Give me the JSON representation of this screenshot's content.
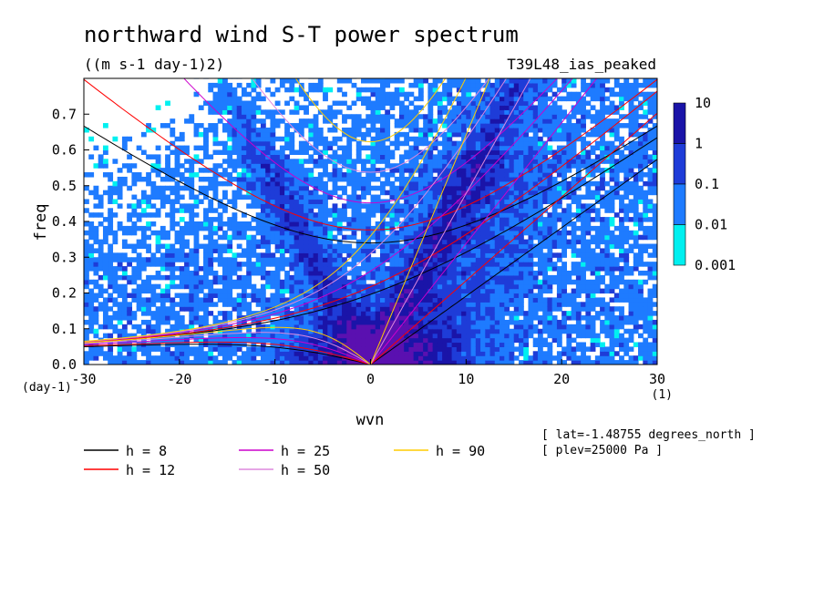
{
  "chart_data": {
    "type": "heatmap",
    "title": "northward wind S-T power spectrum",
    "subtitle": "((m s-1 day-1)2)",
    "run_label": "T39L48_ias_peaked",
    "xlabel": "wvn",
    "ylabel": "freq",
    "x_unit": "(1)",
    "y_unit": "(day-1)",
    "xlim": [
      -30,
      30
    ],
    "ylim": [
      0,
      0.8
    ],
    "x_ticks": [
      "-30",
      "-20",
      "-10",
      "0",
      "10",
      "20",
      "30"
    ],
    "y_ticks": [
      "0.0",
      "0.1",
      "0.2",
      "0.3",
      "0.4",
      "0.5",
      "0.6",
      "0.7"
    ],
    "colorbar": {
      "levels": [
        "10",
        "1",
        "0.1",
        "0.01",
        "0.001"
      ],
      "colors": [
        "#5a10b0",
        "#1a14a8",
        "#1e3cd8",
        "#1e7bff",
        "#00f0f0"
      ]
    },
    "metadata": [
      "[ lat=-1.48755 degrees_north ]",
      "[ plev=25000 Pa ]"
    ],
    "dispersion_curves": [
      {
        "name": "h =  8",
        "color": "#000000"
      },
      {
        "name": "h = 12",
        "color": "#ff0000"
      },
      {
        "name": "h = 25",
        "color": "#cc00cc"
      },
      {
        "name": "h = 50",
        "color": "#dd88dd"
      },
      {
        "name": "h = 90",
        "color": "#ffcc00"
      }
    ]
  }
}
